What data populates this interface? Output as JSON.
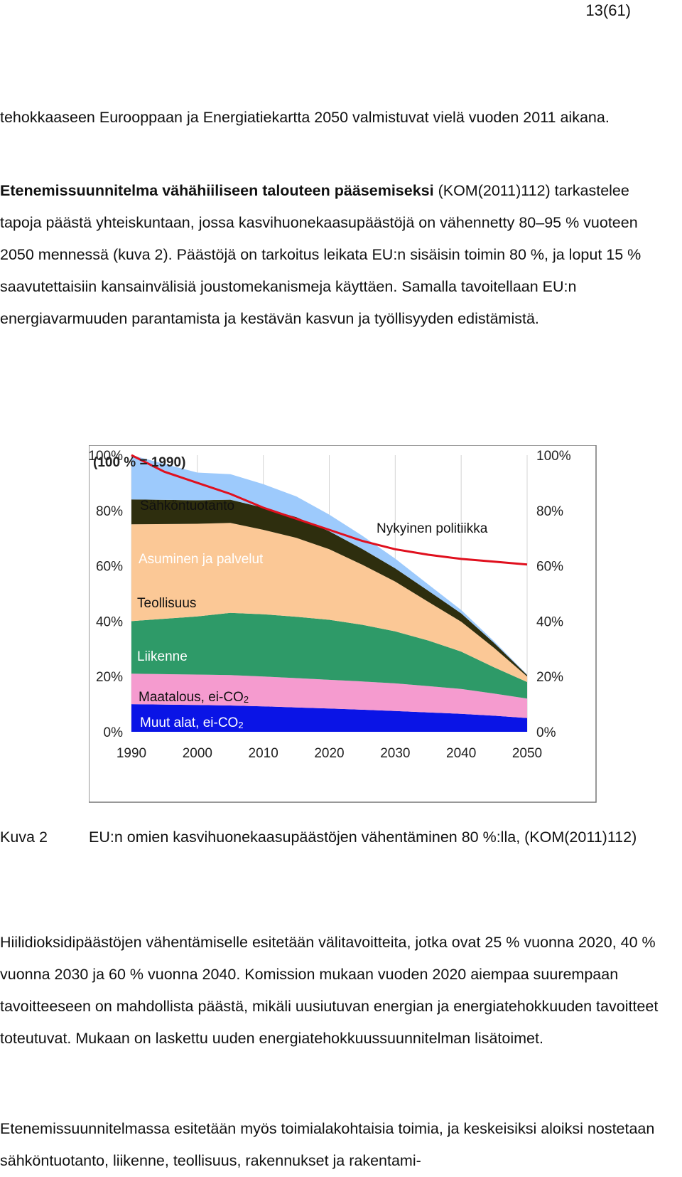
{
  "page": {
    "number": "13(61)"
  },
  "paragraphs": {
    "p1": "tehokkaaseen Eurooppaan ja Energiatiekartta 2050 valmistuvat vielä vuoden 2011 aikana.",
    "p2_bold": "Etenemissuunnitelma vähähiiliseen talouteen pääsemiseksi",
    "p2_rest": " (KOM(2011)112) tarkastelee tapoja päästä yhteiskuntaan, jossa kasvihuonekaasupäästöjä on vähennetty 80–95 % vuoteen 2050 mennessä (kuva 2). Päästöjä on tarkoitus leikata EU:n sisäisin toimin 80 %, ja loput 15 % saavutettaisiin kansainvälisiä joustomekanismeja käyttäen. Samalla tavoitellaan EU:n energiavarmuuden parantamista ja kestävän kasvun ja työllisyyden edistämistä.",
    "p3": "Hiilidioksidipäästöjen vähentämiselle esitetään välitavoitteita, jotka ovat 25 % vuonna 2020, 40 % vuonna 2030 ja 60 % vuonna 2040. Komission mukaan vuoden 2020 aiempaa suurempaan tavoitteeseen on mahdollista päästä, mikäli uusiutuvan energian ja energiatehokkuuden tavoitteet toteutuvat. Mukaan on laskettu uuden energiatehokkuussuunnitelman lisätoimet.",
    "p4": "Etenemissuunnitelmassa esitetään myös toimialakohtaisia toimia, ja keskeisiksi aloiksi nostetaan sähköntuotanto, liikenne, teollisuus, rakennukset ja rakentami-"
  },
  "caption": {
    "label": "Kuva 2",
    "text": "EU:n omien kasvihuonekaasupäästöjen vähentäminen 80 %:lla, (KOM(2011)112)"
  },
  "chart_data": {
    "type": "area",
    "stacked": true,
    "title": "(100 % = 1990)",
    "x": [
      1990,
      2000,
      2005,
      2010,
      2015,
      2020,
      2025,
      2030,
      2035,
      2040,
      2045,
      2050
    ],
    "x_ticks": [
      "1990",
      "2000",
      "2010",
      "2020",
      "2030",
      "2040",
      "2050"
    ],
    "y_ticks_left": [
      "100%",
      "80%",
      "60%",
      "40%",
      "20%",
      "0%"
    ],
    "y_ticks_right": [
      "100%",
      "80%",
      "60%",
      "40%",
      "20%",
      "0%"
    ],
    "ylim": [
      0,
      100
    ],
    "xlim": [
      1990,
      2050
    ],
    "series": [
      {
        "name": "Muut alat, ei-CO2",
        "color": "#0a14e6",
        "values": [
          10,
          9.7,
          9.5,
          9.2,
          8.8,
          8.4,
          8,
          7.5,
          7,
          6.5,
          5.8,
          5
        ]
      },
      {
        "name": "Maatalous, ei-CO2",
        "color": "#f59bcf",
        "values": [
          11,
          11,
          11,
          10.8,
          10.6,
          10.4,
          10.2,
          10,
          9.5,
          9,
          8,
          7
        ]
      },
      {
        "name": "Liikenne",
        "color": "#2e9a68",
        "values": [
          19,
          21,
          22.5,
          22.5,
          22.2,
          21.7,
          20.5,
          18.8,
          16.5,
          13.5,
          9.5,
          6
        ]
      },
      {
        "name": "Teollisuus",
        "color": "#fbc896",
        "values": [
          35,
          33.5,
          32.5,
          30.5,
          28.5,
          25.5,
          21.7,
          18,
          14,
          10.8,
          7,
          2
        ]
      },
      {
        "name": "Asuminen ja palvelut",
        "color": "#2e2e0e",
        "values": [
          9,
          8.5,
          8.4,
          8,
          7.5,
          6.5,
          5.7,
          4.8,
          4,
          3,
          1.8,
          0.5
        ]
      },
      {
        "name": "Sähköntuotanto",
        "color": "#9dcafc",
        "values": [
          16,
          10,
          9.2,
          8.5,
          7.5,
          6,
          4.8,
          3.5,
          2.3,
          1.2,
          0.6,
          0.2
        ]
      }
    ],
    "line_series": {
      "name": "Nykyinen politiikka",
      "color": "#e0101e",
      "x": [
        1990,
        1995,
        2000,
        2005,
        2010,
        2015,
        2020,
        2025,
        2030,
        2035,
        2040,
        2045,
        2050
      ],
      "values": [
        100,
        94,
        90,
        86,
        81,
        77,
        73,
        69,
        66,
        64,
        62.5,
        61.5,
        60.5
      ]
    },
    "labels": {
      "Sähköntuotanto": "Sähköntuotanto",
      "Asuminen ja palvelut": "Asuminen ja palvelut",
      "Teollisuus": "Teollisuus",
      "Liikenne": "Liikenne",
      "Maatalous_base": "Maatalous, ei-CO",
      "Muut_base": "Muut alat, ei-CO",
      "subscript": "2",
      "Nykyinen politiikka": "Nykyinen politiikka"
    }
  }
}
